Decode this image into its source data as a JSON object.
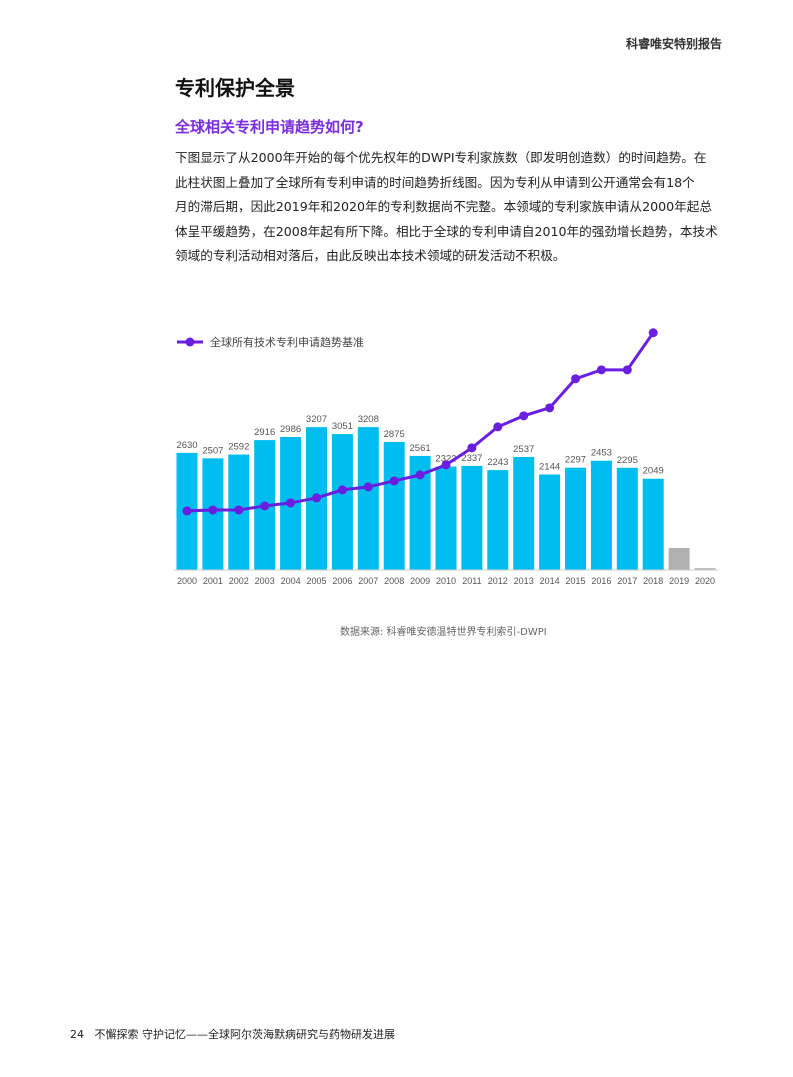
{
  "header": "科睿唯安特别报告",
  "title": "专利保护全景",
  "subtitle": "全球相关专利申请趋势如何?",
  "paragraph": [
    "下图显示了从2000年开始的每个优先权年的DWPI专利家族数（即发明创造数）的时间趋势。在",
    "此柱状图上叠加了全球所有专利申请的时间趋势折线图。因为专利从申请到公开通常会有18个",
    "月的滞后期，因此2019年和2020年的专利数据尚不完整。本领域的专利家族申请从2000年起总",
    "体呈平缓趋势，在2008年起有所下降。相比于全球的专利申请自2010年的强劲增长趋势，本技术",
    "领域的专利活动相对落后，由此反映出本技术领域的研发活动不积极。"
  ],
  "chart_data": {
    "type": "bar",
    "categories": [
      "2000",
      "2001",
      "2002",
      "2003",
      "2004",
      "2005",
      "2006",
      "2007",
      "2008",
      "2009",
      "2010",
      "2011",
      "2012",
      "2013",
      "2014",
      "2015",
      "2016",
      "2017",
      "2018",
      "2019",
      "2020"
    ],
    "values": [
      2630,
      2507,
      2592,
      2916,
      2986,
      3207,
      3051,
      3208,
      2875,
      2561,
      2322,
      2337,
      2243,
      2537,
      2144,
      2297,
      2453,
      2295,
      2049,
      495,
      40
    ],
    "value_labels": [
      "2630",
      "2507",
      "2592",
      "2916",
      "2986",
      "3207",
      "3051",
      "3208",
      "2875",
      "2561",
      "2322",
      "2337",
      "2243",
      "2537",
      "2144",
      "2297",
      "2453",
      "2295",
      "2049",
      null,
      null
    ],
    "colors": [
      "#00bdf0",
      "#00bdf0",
      "#00bdf0",
      "#00bdf0",
      "#00bdf0",
      "#00bdf0",
      "#00bdf0",
      "#00bdf0",
      "#00bdf0",
      "#00bdf0",
      "#00bdf0",
      "#00bdf0",
      "#00bdf0",
      "#00bdf0",
      "#00bdf0",
      "#00bdf0",
      "#00bdf0",
      "#00bdf0",
      "#00bdf0",
      "#b0b0b0",
      "#b0b0b0"
    ],
    "line": {
      "name": "全球所有技术专利申请趋势基准",
      "color": "#6a1fe0",
      "values": [
        1326,
        1348,
        1348,
        1438,
        1506,
        1618,
        1798,
        1865,
        2000,
        2135,
        2360,
        2742,
        3213,
        3461,
        3640,
        4292,
        4494,
        4494,
        5326,
        null,
        null
      ]
    },
    "ylim": [
      0,
      5500
    ]
  },
  "source": "数据来源: 科睿唯安德温特世界专利索引-DWPI",
  "footer": {
    "page": "24",
    "text": "不懈探索 守护记忆——全球阿尔茨海默病研究与药物研发进展"
  }
}
